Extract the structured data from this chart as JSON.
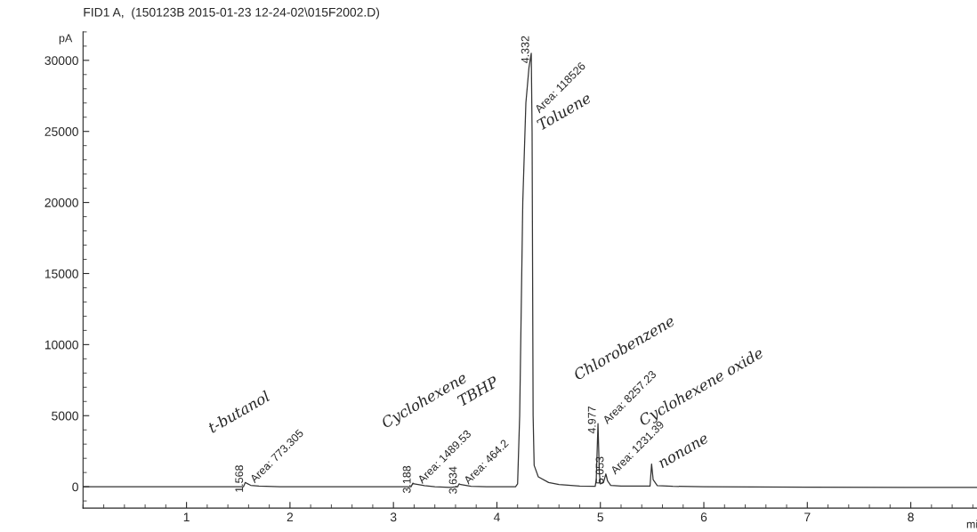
{
  "chart_data": {
    "type": "line",
    "title": "FID1 A,  (150123B 2015-01-23 12-24-02\\015F2002.D)",
    "ylabel": "pA",
    "xlabel": "mi",
    "x": [
      0,
      1.0,
      1.5,
      1.55,
      1.568,
      1.58,
      1.62,
      1.7,
      1.9,
      3.0,
      3.17,
      3.188,
      3.2,
      3.3,
      3.4,
      3.55,
      3.62,
      3.634,
      3.65,
      3.75,
      3.9,
      4.18,
      4.2,
      4.22,
      4.25,
      4.28,
      4.31,
      4.332,
      4.34,
      4.35,
      4.36,
      4.4,
      4.5,
      4.6,
      4.8,
      4.95,
      4.96,
      4.977,
      4.99,
      5.0,
      5.03,
      5.053,
      5.07,
      5.1,
      5.2,
      5.48,
      5.495,
      5.51,
      5.55,
      5.7,
      6.0,
      7.0,
      8.0,
      8.64
    ],
    "series": [
      {
        "color": "#333333",
        "values": [
          0,
          0,
          0,
          0,
          300,
          250,
          100,
          50,
          0,
          0,
          0,
          250,
          200,
          80,
          0,
          -50,
          0,
          200,
          150,
          30,
          0,
          0,
          200,
          5000,
          20000,
          27000,
          29500,
          30500,
          25000,
          5000,
          1500,
          700,
          300,
          150,
          50,
          30,
          500,
          4440,
          1000,
          200,
          300,
          900,
          400,
          100,
          50,
          40,
          1600,
          500,
          80,
          30,
          0,
          -30,
          -50,
          -50
        ]
      }
    ],
    "xlim": [
      0,
      8.64
    ],
    "xticks": [
      1,
      2,
      3,
      4,
      5,
      6,
      7,
      8
    ],
    "ylim": [
      -1500,
      32000
    ],
    "yticks": [
      0,
      5000,
      10000,
      15000,
      20000,
      25000,
      30000
    ],
    "grid": false,
    "legend": false,
    "marker": "none",
    "line_style": "solid",
    "annotations": [
      {
        "text": "1.568",
        "x": 1.568,
        "y": 300
      },
      {
        "text": "Area: 773.305",
        "x": 1.568,
        "y": 300
      },
      "t-butanol",
      {
        "text": "3.188",
        "x": 3.188,
        "y": 250
      },
      {
        "text": "Area: 1489.53",
        "x": 3.188,
        "y": 250
      },
      "Cyclohexene",
      {
        "text": "3.634",
        "x": 3.634,
        "y": 200
      },
      {
        "text": "Area: 464.2",
        "x": 3.634,
        "y": 200
      },
      "TBHP",
      {
        "text": "4.332",
        "x": 4.332,
        "y": 30500
      },
      {
        "text": "Area: 118526",
        "x": 4.332,
        "y": 30500
      },
      "Toluene",
      {
        "text": "4.977",
        "x": 4.977,
        "y": 4440
      },
      {
        "text": "Area: 8257.23",
        "x": 4.977,
        "y": 4440
      },
      "Chlorobenzene",
      {
        "text": "5.053",
        "x": 5.053,
        "y": 900
      },
      {
        "text": "Area: 1231.39",
        "x": 5.053,
        "y": 900
      },
      "Cyclohexene oxide",
      "nonane"
    ]
  }
}
